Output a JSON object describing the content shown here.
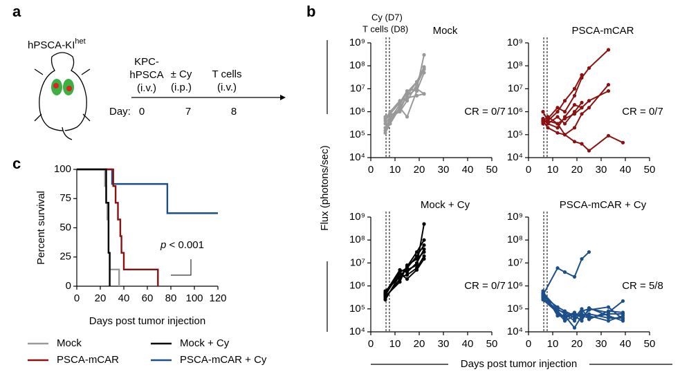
{
  "panel_labels": [
    "a",
    "b",
    "c"
  ],
  "schematic": {
    "mouse_label": "hPSCA-KI",
    "mouse_label_sup": "het",
    "steps": [
      {
        "lines": [
          "KPC-",
          "hPSCA",
          "(i.v.)"
        ],
        "day": "0"
      },
      {
        "lines": [
          "± Cy",
          "(i.p.)"
        ],
        "day": "7"
      },
      {
        "lines": [
          "T cells",
          "(i.v.)"
        ],
        "day": "8"
      }
    ],
    "day_label": "Day:"
  },
  "shared": {
    "y_label": "Flux (photons/sec)",
    "x_label": "Days post tumor injection"
  },
  "chart_data": [
    {
      "type": "step",
      "xlabel": "Days post tumor injection",
      "ylabel": "Percent survival",
      "annotation_italic": "p",
      "annotation": " < 0.001",
      "xlim": [
        0,
        120
      ],
      "xticks": [
        0,
        20,
        40,
        60,
        80,
        100,
        120
      ],
      "ylim": [
        0,
        100
      ],
      "yticks": [
        0,
        25,
        50,
        75,
        100
      ],
      "series": [
        {
          "name": "Mock",
          "color": "#999999",
          "x": [
            0,
            24,
            25,
            26,
            27,
            28,
            36
          ],
          "values": [
            100,
            85.7,
            71.4,
            57.1,
            28.6,
            14.3,
            0
          ]
        },
        {
          "name": "PSCA-mCAR",
          "color": "#8b1111",
          "x": [
            0,
            31,
            33,
            35,
            37,
            38,
            40,
            69
          ],
          "values": [
            100,
            85.7,
            71.4,
            57.1,
            42.9,
            28.6,
            14.3,
            0
          ]
        },
        {
          "name": "Mock + Cy",
          "color": "#000000",
          "x": [
            0,
            25,
            27,
            28
          ],
          "values": [
            100,
            71.4,
            28.6,
            0
          ]
        },
        {
          "name": "PSCA-mCAR + Cy",
          "color": "#1c4f8a",
          "x": [
            0,
            30,
            77,
            120
          ],
          "values": [
            100,
            87.5,
            62.5,
            62.5
          ]
        }
      ]
    },
    {
      "type": "line",
      "title": "Mock",
      "cr_label": "CR = 0/7",
      "color": "#999999",
      "log_y": true,
      "annotations": [
        "Cy (D7)",
        "T cells (D8)"
      ],
      "vlines": [
        6.3,
        7.7
      ],
      "xlim": [
        0,
        50
      ],
      "xticks": [
        0,
        10,
        20,
        30,
        40,
        50
      ],
      "ylim": [
        10000,
        1000000000
      ],
      "yticks": [
        {
          "value": 10000,
          "label": "10⁴"
        },
        {
          "value": 100000,
          "label": "10⁵"
        },
        {
          "value": 1000000,
          "label": "10⁶"
        },
        {
          "value": 10000000,
          "label": "10⁷"
        },
        {
          "value": 100000000,
          "label": "10⁸"
        },
        {
          "value": 1000000000,
          "label": "10⁹"
        }
      ],
      "x": [
        6,
        8,
        12,
        15,
        19,
        22
      ],
      "series": [
        {
          "values": [
            150000,
            400000,
            1500000,
            5000000,
            10000000,
            300000000
          ]
        },
        {
          "values": [
            200000,
            500000,
            2000000,
            7000000,
            20000000,
            90000000
          ]
        },
        {
          "values": [
            300000,
            600000,
            1000000,
            3000000,
            15000000,
            70000000
          ]
        },
        {
          "values": [
            400000,
            800000,
            2500000,
            8000000,
            10000000,
            6000000
          ]
        },
        {
          "values": [
            500000,
            1000000,
            3000000,
            4000000,
            5000000,
            6000000
          ]
        },
        {
          "values": [
            120000,
            300000,
            1500000,
            600000,
            8000000,
            50000000
          ]
        },
        {
          "values": [
            600000,
            700000,
            1200000,
            5000000,
            20000000,
            80000000
          ]
        }
      ]
    },
    {
      "type": "line",
      "title": "PSCA-mCAR",
      "cr_label": "CR = 0/7",
      "color": "#8b1111",
      "log_y": true,
      "vlines": [
        6.3,
        7.7
      ],
      "xlim": [
        0,
        50
      ],
      "xticks": [
        0,
        10,
        20,
        30,
        40,
        50
      ],
      "ylim": [
        10000,
        1000000000
      ],
      "yticks": [
        {
          "value": 10000,
          "label": "10⁴"
        },
        {
          "value": 100000,
          "label": "10⁵"
        },
        {
          "value": 1000000,
          "label": "10⁶"
        },
        {
          "value": 10000000,
          "label": "10⁷"
        },
        {
          "value": 100000000,
          "label": "10⁸"
        },
        {
          "value": 1000000000,
          "label": "10⁹"
        }
      ],
      "x": [
        6,
        8,
        12,
        15,
        19,
        22,
        25,
        33,
        39
      ],
      "series": [
        {
          "values": [
            1000000,
            400000,
            1000000,
            3000000,
            10000000,
            40000000,
            null,
            null,
            null
          ]
        },
        {
          "values": [
            300000,
            500000,
            1500000,
            1000000,
            5000000,
            30000000,
            80000000,
            500000000,
            null
          ]
        },
        {
          "values": [
            500000,
            300000,
            200000,
            600000,
            2000000,
            1500000,
            3000000,
            8000000,
            null
          ]
        },
        {
          "values": [
            400000,
            200000,
            120000,
            100000,
            50000,
            40000,
            20000,
            90000,
            45000
          ]
        },
        {
          "values": [
            350000,
            400000,
            300000,
            100000,
            200000,
            800000,
            1500000,
            15000000,
            null
          ]
        },
        {
          "values": [
            400000,
            600000,
            300000,
            500000,
            800000,
            1500000,
            null,
            null,
            null
          ]
        },
        {
          "values": [
            450000,
            300000,
            600000,
            300000,
            1000000,
            2500000,
            null,
            null,
            null
          ]
        }
      ]
    },
    {
      "type": "line",
      "title": "Mock + Cy",
      "cr_label": "CR = 0/7",
      "color": "#000000",
      "log_y": true,
      "vlines": [
        6.3,
        7.7
      ],
      "xlim": [
        0,
        50
      ],
      "xticks": [
        0,
        10,
        20,
        30,
        40,
        50
      ],
      "ylim": [
        10000,
        1000000000
      ],
      "yticks": [
        {
          "value": 10000,
          "label": "10⁴"
        },
        {
          "value": 100000,
          "label": "10⁵"
        },
        {
          "value": 1000000,
          "label": "10⁶"
        },
        {
          "value": 10000000,
          "label": "10⁷"
        },
        {
          "value": 100000000,
          "label": "10⁸"
        },
        {
          "value": 1000000000,
          "label": "10⁹"
        }
      ],
      "x": [
        6,
        12,
        15,
        19,
        22
      ],
      "series": [
        {
          "values": [
            250000,
            3000000,
            5000000,
            8000000,
            500000000
          ]
        },
        {
          "values": [
            300000,
            2000000,
            7000000,
            30000000,
            100000000
          ]
        },
        {
          "values": [
            400000,
            4000000,
            6000000,
            20000000,
            60000000
          ]
        },
        {
          "values": [
            500000,
            5000000,
            4000000,
            10000000,
            40000000
          ]
        },
        {
          "values": [
            600000,
            2500000,
            3000000,
            6000000,
            20000000
          ]
        },
        {
          "values": [
            350000,
            1500000,
            8000000,
            15000000,
            30000000
          ]
        },
        {
          "values": [
            450000,
            3500000,
            2000000,
            5000000,
            15000000
          ]
        }
      ]
    },
    {
      "type": "line",
      "title": "PSCA-mCAR + Cy",
      "cr_label": "CR = 5/8",
      "color": "#1c4f8a",
      "log_y": true,
      "vlines": [
        6.3,
        7.7
      ],
      "xlim": [
        0,
        50
      ],
      "xticks": [
        0,
        10,
        20,
        30,
        40,
        50
      ],
      "ylim": [
        10000,
        1000000000
      ],
      "yticks": [
        {
          "value": 10000,
          "label": "10⁴"
        },
        {
          "value": 100000,
          "label": "10⁵"
        },
        {
          "value": 1000000,
          "label": "10⁶"
        },
        {
          "value": 10000000,
          "label": "10⁷"
        },
        {
          "value": 100000000,
          "label": "10⁸"
        },
        {
          "value": 1000000000,
          "label": "10⁹"
        }
      ],
      "x": [
        6,
        12,
        15,
        19,
        22,
        25,
        33,
        39
      ],
      "series": [
        {
          "values": [
            400000,
            6000000,
            4000000,
            2500000,
            15000000,
            30000000,
            null,
            null
          ]
        },
        {
          "values": [
            500000,
            100000,
            60000,
            30000,
            80000,
            100000,
            70000,
            220000
          ]
        },
        {
          "values": [
            300000,
            80000,
            40000,
            60000,
            50000,
            60000,
            40000,
            40000
          ]
        },
        {
          "values": [
            450000,
            60000,
            50000,
            15000,
            50000,
            40000,
            60000,
            60000
          ]
        },
        {
          "values": [
            350000,
            120000,
            80000,
            50000,
            30000,
            110000,
            50000,
            30000
          ]
        },
        {
          "values": [
            250000,
            70000,
            30000,
            50000,
            60000,
            50000,
            30000,
            50000
          ]
        },
        {
          "values": [
            600000,
            50000,
            45000,
            70000,
            40000,
            90000,
            120000,
            35000
          ]
        },
        {
          "values": [
            300000,
            90000,
            70000,
            40000,
            100000,
            35000,
            80000,
            70000
          ]
        }
      ]
    }
  ]
}
